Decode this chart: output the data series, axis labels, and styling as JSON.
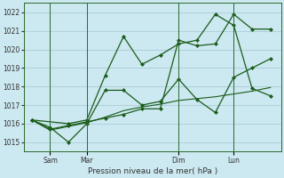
{
  "background_color": "#cce8f0",
  "grid_color": "#aaccd8",
  "line_color": "#1a5c1a",
  "marker_color": "#1a5c1a",
  "xlabel": "Pression niveau de la mer( hPa )",
  "ylim": [
    1014.5,
    1022.5
  ],
  "yticks": [
    1015,
    1016,
    1017,
    1018,
    1019,
    1020,
    1021,
    1022
  ],
  "day_labels": [
    "Sam",
    "Mar",
    "Dim",
    "Lun"
  ],
  "day_vlines": [
    7,
    21,
    56,
    77
  ],
  "series1_x": [
    0,
    7,
    14,
    21,
    28,
    35,
    42,
    49,
    56,
    63,
    70,
    77,
    84,
    91
  ],
  "series1_y": [
    1016.2,
    1015.8,
    1015.0,
    1016.0,
    1017.8,
    1017.8,
    1017.0,
    1017.2,
    1018.4,
    1017.3,
    1016.6,
    1018.5,
    1019.0,
    1019.5
  ],
  "series2_x": [
    0,
    7,
    14,
    21,
    28,
    35,
    42,
    49,
    56,
    63,
    70,
    77,
    84,
    91
  ],
  "series2_y": [
    1016.2,
    1015.7,
    1015.9,
    1016.1,
    1016.3,
    1016.5,
    1016.8,
    1016.8,
    1020.5,
    1020.2,
    1020.3,
    1021.9,
    1021.1,
    1021.1
  ],
  "series3_x": [
    0,
    14,
    21,
    28,
    35,
    42,
    49,
    56,
    63,
    70,
    77,
    84,
    91
  ],
  "series3_y": [
    1016.2,
    1016.0,
    1016.2,
    1018.6,
    1020.7,
    1019.2,
    1019.7,
    1020.3,
    1020.5,
    1021.9,
    1021.3,
    1017.9,
    1017.5
  ],
  "series4_x": [
    0,
    7,
    14,
    21,
    28,
    35,
    42,
    49,
    56,
    63,
    70,
    77,
    84,
    91
  ],
  "series4_y": [
    1016.2,
    1015.65,
    1015.85,
    1016.05,
    1016.35,
    1016.7,
    1016.9,
    1017.05,
    1017.25,
    1017.35,
    1017.45,
    1017.6,
    1017.75,
    1017.95
  ],
  "xlim": [
    -3,
    95
  ]
}
